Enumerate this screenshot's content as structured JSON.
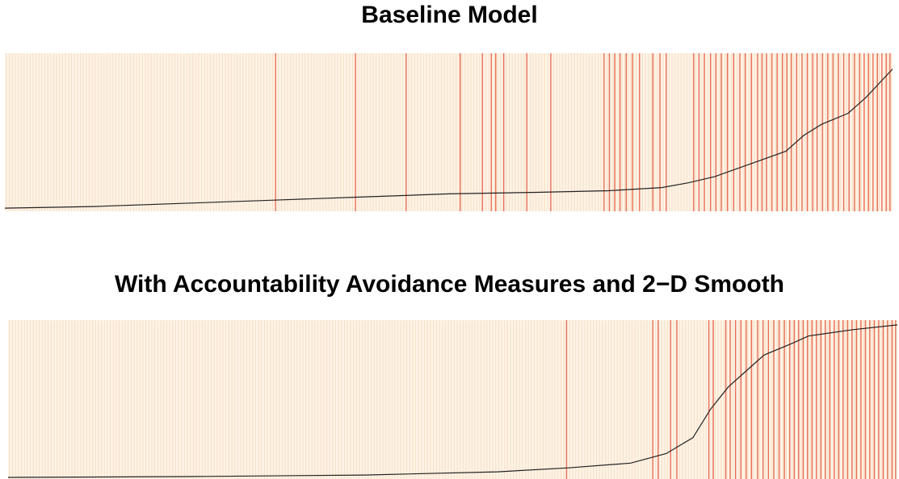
{
  "colors": {
    "panel_background": "#fdf3e6",
    "nonevent_line": "#f6dfc5",
    "event_line": "#e8705a",
    "curve": "#222222"
  },
  "chart_data": [
    {
      "type": "separation_plot",
      "title": "Baseline Model",
      "n_observations": 300,
      "xlim": [
        0,
        1
      ],
      "ylim": [
        0,
        1
      ],
      "event_positions": [
        0.305,
        0.395,
        0.452,
        0.513,
        0.538,
        0.548,
        0.553,
        0.562,
        0.588,
        0.615,
        0.675,
        0.681,
        0.687,
        0.693,
        0.7,
        0.707,
        0.715,
        0.73,
        0.738,
        0.745,
        0.776,
        0.782,
        0.788,
        0.795,
        0.801,
        0.807,
        0.814,
        0.821,
        0.828,
        0.834,
        0.841,
        0.848,
        0.853,
        0.858,
        0.864,
        0.87,
        0.876,
        0.881,
        0.886,
        0.892,
        0.898,
        0.904,
        0.91,
        0.915,
        0.921,
        0.927,
        0.933,
        0.939,
        0.945,
        0.951,
        0.957,
        0.963,
        0.968,
        0.973,
        0.978,
        0.983,
        0.988,
        0.993,
        0.997
      ],
      "curve": {
        "x": [
          0.0,
          0.1,
          0.2,
          0.3,
          0.4,
          0.5,
          0.6,
          0.68,
          0.74,
          0.77,
          0.8,
          0.85,
          0.88,
          0.9,
          0.92,
          0.95,
          0.97,
          1.0
        ],
        "y": [
          0.02,
          0.03,
          0.05,
          0.07,
          0.09,
          0.11,
          0.12,
          0.13,
          0.15,
          0.18,
          0.22,
          0.32,
          0.38,
          0.48,
          0.55,
          0.62,
          0.72,
          0.9
        ]
      }
    },
    {
      "type": "separation_plot",
      "title": "With Accountability Avoidance Measures and 2−D Smooth",
      "n_observations": 300,
      "xlim": [
        0,
        1
      ],
      "ylim": [
        0,
        1
      ],
      "event_positions": [
        0.628,
        0.725,
        0.731,
        0.745,
        0.752,
        0.788,
        0.793,
        0.807,
        0.812,
        0.818,
        0.824,
        0.83,
        0.836,
        0.843,
        0.849,
        0.855,
        0.861,
        0.867,
        0.873,
        0.879,
        0.884,
        0.889,
        0.894,
        0.899,
        0.904,
        0.909,
        0.914,
        0.919,
        0.924,
        0.929,
        0.934,
        0.939,
        0.944,
        0.949,
        0.954,
        0.959,
        0.964,
        0.969,
        0.974,
        0.979,
        0.984,
        0.989,
        0.994,
        0.998
      ],
      "curve": {
        "x": [
          0.0,
          0.2,
          0.4,
          0.55,
          0.63,
          0.7,
          0.74,
          0.77,
          0.79,
          0.81,
          0.83,
          0.85,
          0.88,
          0.9,
          0.95,
          1.0
        ],
        "y": [
          0.01,
          0.015,
          0.025,
          0.045,
          0.07,
          0.1,
          0.16,
          0.26,
          0.44,
          0.58,
          0.68,
          0.78,
          0.85,
          0.9,
          0.94,
          0.97
        ]
      }
    }
  ]
}
